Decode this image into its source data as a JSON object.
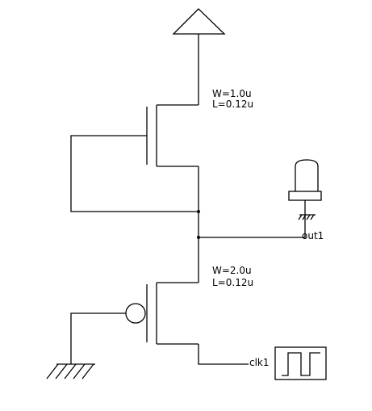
{
  "schematic": {
    "pmos": {
      "width_label": "W=1.0u",
      "length_label": "L=0.12u"
    },
    "nmos": {
      "width_label": "W=2.0u",
      "length_label": "L=0.12u"
    },
    "output_label": "out1",
    "input_label": "clk1"
  },
  "colors": {
    "line": "#000000",
    "background": "#ffffff"
  },
  "icons": [
    "vdd-supply-icon",
    "ground-icon",
    "probe-icon",
    "pulse-source-icon",
    "inversion-bubble-icon"
  ]
}
